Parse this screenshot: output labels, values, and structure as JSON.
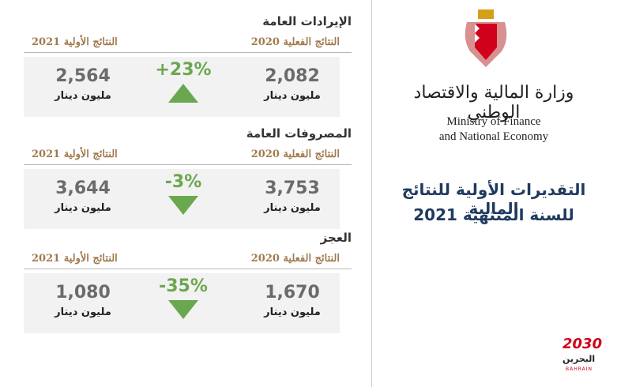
{
  "sections": [
    {
      "heading": "الإيرادات العامة",
      "actual_label": "النتائج الفعلية 2020",
      "prelim_label": "النتائج الأولية 2021",
      "actual_value": "2,082",
      "actual_unit": "مليون دينار",
      "change": "+23%",
      "prelim_value": "2,564",
      "prelim_unit": "مليون دينار"
    },
    {
      "heading": "المصروفات العامة",
      "actual_label": "النتائج الفعلية 2020",
      "prelim_label": "النتائج الأولية 2021",
      "actual_value": "3,753",
      "actual_unit": "مليون دينار",
      "change": "-3%",
      "prelim_value": "3,644",
      "prelim_unit": "مليون دينار"
    },
    {
      "heading": "العجز",
      "actual_label": "النتائج الفعلية 2020",
      "prelim_label": "النتائج الأولية 2021",
      "actual_value": "1,670",
      "actual_unit": "مليون دينار",
      "change": "-35%",
      "prelim_value": "1,080",
      "prelim_unit": "مليون دينار"
    }
  ],
  "ministry": {
    "arabic": "وزارة المالية والاقتصاد الوطني",
    "english_1": "Ministry of Finance",
    "english_2": "and National Economy"
  },
  "title": {
    "line_1": "التقديرات الأولية للنتائج المالية",
    "line_2": "للسنة المنتهية 2021"
  },
  "vision": {
    "year": "2030",
    "arabic": "البحرين",
    "english": "BAHRAIN"
  }
}
